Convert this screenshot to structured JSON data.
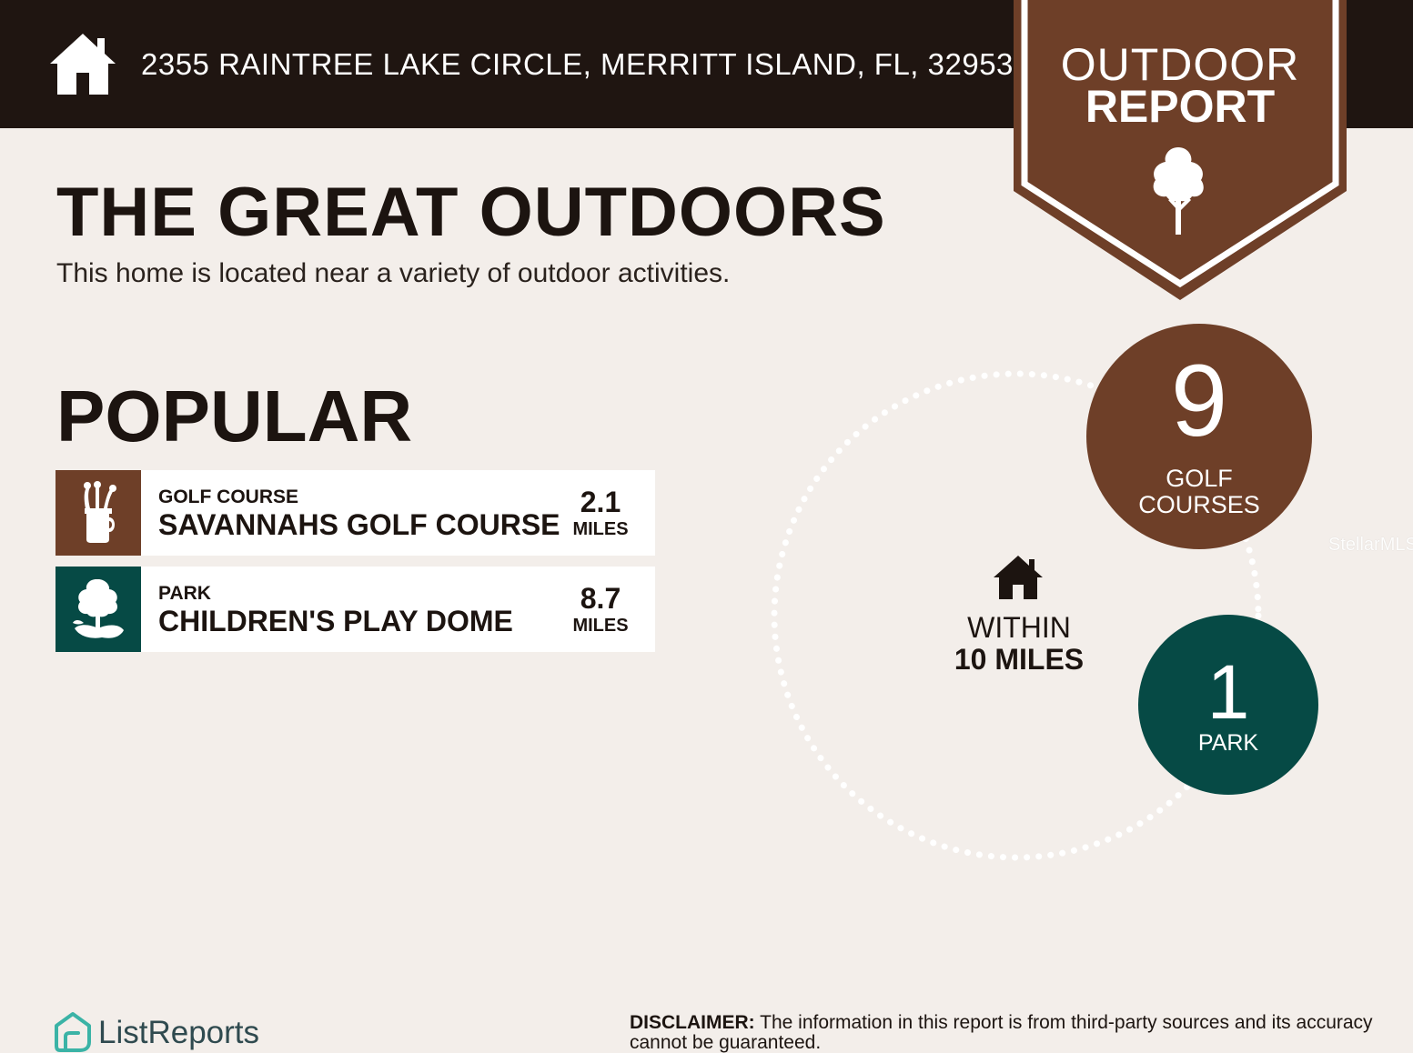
{
  "header": {
    "address": "2355 RAINTREE LAKE CIRCLE, MERRITT ISLAND, FL, 32953",
    "badge_line1": "OUTDOOR",
    "badge_line2": "REPORT"
  },
  "main": {
    "title": "THE GREAT OUTDOORS",
    "subtitle": "This home is located near a variety of outdoor activities.",
    "popular_heading": "POPULAR",
    "places": [
      {
        "category": "GOLF COURSE",
        "name": "SAVANNAHS GOLF COURSE",
        "distance": "2.1",
        "unit": "MILES",
        "icon": "golf-bag-icon",
        "color": "#6e3f28"
      },
      {
        "category": "PARK",
        "name": "CHILDREN'S PLAY DOME",
        "distance": "8.7",
        "unit": "MILES",
        "icon": "park-tree-icon",
        "color": "#064a45"
      }
    ]
  },
  "summary": {
    "within_line1": "WITHIN",
    "within_line2": "10 MILES",
    "golf_count": "9",
    "golf_label_1": "GOLF",
    "golf_label_2": "COURSES",
    "park_count": "1",
    "park_label": "PARK"
  },
  "watermark": "StellarMLS",
  "footer": {
    "logo_text": "ListReports",
    "disclaimer_label": "DISCLAIMER:",
    "disclaimer_text": " The information in this report is from third-party sources and its accuracy cannot be guaranteed."
  },
  "colors": {
    "brown": "#6e3f28",
    "teal": "#064a45",
    "dark": "#1f1511",
    "background": "#f3eeea"
  }
}
